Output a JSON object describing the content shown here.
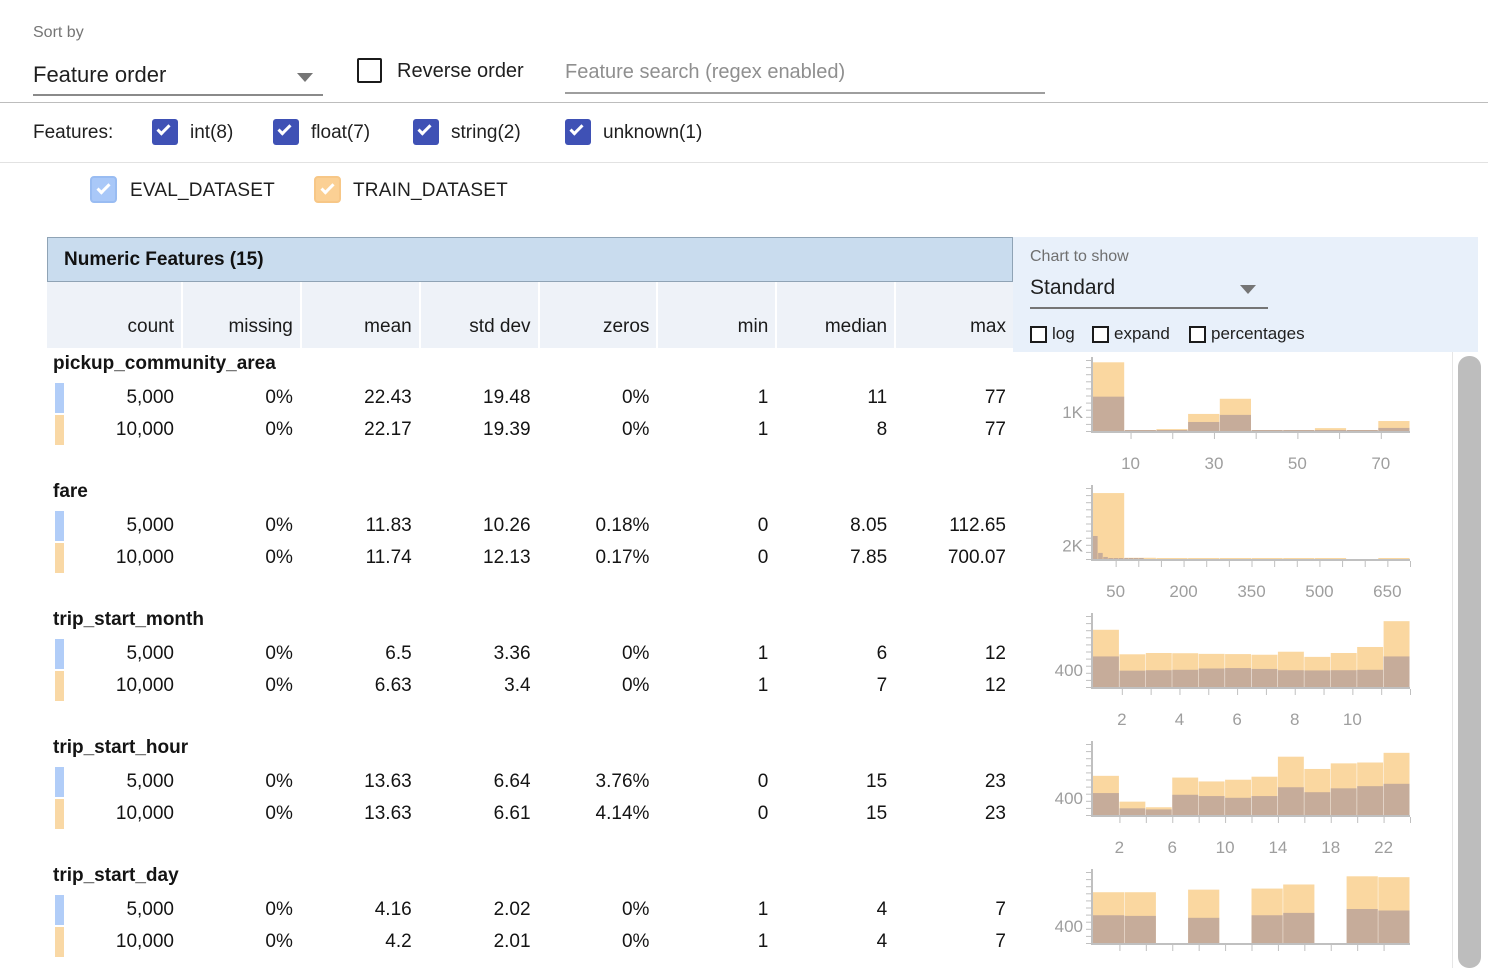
{
  "toolbar": {
    "sort_by_label": "Sort by",
    "sort_value": "Feature order",
    "reverse_label": "Reverse order",
    "search_placeholder": "Feature search (regex enabled)"
  },
  "filters": {
    "label": "Features:",
    "types": [
      {
        "label": "int(8)",
        "checked": true
      },
      {
        "label": "float(7)",
        "checked": true
      },
      {
        "label": "string(2)",
        "checked": true
      },
      {
        "label": "unknown(1)",
        "checked": true
      }
    ]
  },
  "datasets": [
    {
      "label": "EVAL_DATASET",
      "color": "#a9c8f8",
      "checked": true
    },
    {
      "label": "TRAIN_DATASET",
      "color": "#fbd094",
      "checked": true
    }
  ],
  "table": {
    "title": "Numeric Features (15)",
    "columns": [
      "count",
      "missing",
      "mean",
      "std dev",
      "zeros",
      "min",
      "median",
      "max"
    ]
  },
  "chart_controls": {
    "label": "Chart to show",
    "selected": "Standard",
    "checkboxes": [
      {
        "label": "log",
        "checked": false
      },
      {
        "label": "expand",
        "checked": false
      },
      {
        "label": "percentages",
        "checked": false
      }
    ]
  },
  "colors": {
    "train": "#fad7a0",
    "eval_swatch": "#b1cdf8",
    "eval_overlay": "rgba(126,111,145,0.42)",
    "filter_checkbox": "#3f51b5",
    "header_bar_bg": "#c9dcee",
    "panel_bg": "#e8f0fa",
    "axis": "#c0c0c0",
    "axis_text": "#9e9e9e"
  },
  "features": [
    {
      "name": "pickup_community_area",
      "rows": [
        {
          "dataset": "EVAL_DATASET",
          "count": "5,000",
          "missing": "0%",
          "mean": "22.43",
          "std": "19.48",
          "zeros": "0%",
          "min": "1",
          "median": "11",
          "max": "77"
        },
        {
          "dataset": "TRAIN_DATASET",
          "count": "10,000",
          "missing": "0%",
          "mean": "22.17",
          "std": "19.39",
          "zeros": "0%",
          "min": "1",
          "median": "8",
          "max": "77"
        }
      ]
    },
    {
      "name": "fare",
      "rows": [
        {
          "dataset": "EVAL_DATASET",
          "count": "5,000",
          "missing": "0%",
          "mean": "11.83",
          "std": "10.26",
          "zeros": "0.18%",
          "min": "0",
          "median": "8.05",
          "max": "112.65"
        },
        {
          "dataset": "TRAIN_DATASET",
          "count": "10,000",
          "missing": "0%",
          "mean": "11.74",
          "std": "12.13",
          "zeros": "0.17%",
          "min": "0",
          "median": "7.85",
          "max": "700.07"
        }
      ]
    },
    {
      "name": "trip_start_month",
      "rows": [
        {
          "dataset": "EVAL_DATASET",
          "count": "5,000",
          "missing": "0%",
          "mean": "6.5",
          "std": "3.36",
          "zeros": "0%",
          "min": "1",
          "median": "6",
          "max": "12"
        },
        {
          "dataset": "TRAIN_DATASET",
          "count": "10,000",
          "missing": "0%",
          "mean": "6.63",
          "std": "3.4",
          "zeros": "0%",
          "min": "1",
          "median": "7",
          "max": "12"
        }
      ]
    },
    {
      "name": "trip_start_hour",
      "rows": [
        {
          "dataset": "EVAL_DATASET",
          "count": "5,000",
          "missing": "0%",
          "mean": "13.63",
          "std": "6.64",
          "zeros": "3.76%",
          "min": "0",
          "median": "15",
          "max": "23"
        },
        {
          "dataset": "TRAIN_DATASET",
          "count": "10,000",
          "missing": "0%",
          "mean": "13.63",
          "std": "6.61",
          "zeros": "4.14%",
          "min": "0",
          "median": "15",
          "max": "23"
        }
      ]
    },
    {
      "name": "trip_start_day",
      "rows": [
        {
          "dataset": "EVAL_DATASET",
          "count": "5,000",
          "missing": "0%",
          "mean": "4.16",
          "std": "2.02",
          "zeros": "0%",
          "min": "1",
          "median": "4",
          "max": "7"
        },
        {
          "dataset": "TRAIN_DATASET",
          "count": "10,000",
          "missing": "0%",
          "mean": "4.2",
          "std": "2.01",
          "zeros": "0%",
          "min": "1",
          "median": "4",
          "max": "7"
        }
      ]
    }
  ],
  "chart_data": [
    {
      "type": "histogram",
      "feature": "pickup_community_area",
      "x_min": 1,
      "x_max": 77,
      "y_max": 3700,
      "y_gridline": {
        "value": 1000,
        "label": "1K"
      },
      "x_ticks": [
        10,
        20,
        30,
        40,
        50,
        60,
        70
      ],
      "x_tick_labels": [
        {
          "v": 10,
          "t": "10"
        },
        {
          "v": 30,
          "t": "30"
        },
        {
          "v": 50,
          "t": "50"
        },
        {
          "v": 70,
          "t": "70"
        }
      ],
      "series": [
        {
          "name": "TRAIN_DATASET",
          "bin_start": 1,
          "bin_width": 7.6,
          "counts": [
            3580,
            30,
            100,
            890,
            1680,
            10,
            5,
            150,
            5,
            520
          ]
        },
        {
          "name": "EVAL_DATASET",
          "bin_start": 1,
          "bin_width": 7.6,
          "counts": [
            1790,
            10,
            40,
            470,
            840,
            5,
            2,
            50,
            2,
            160
          ]
        }
      ]
    },
    {
      "type": "histogram",
      "feature": "fare",
      "x_min": 0,
      "x_max": 700,
      "y_max": 10500,
      "y_gridline": {
        "value": 2000,
        "label": "2K"
      },
      "x_ticks": [
        50,
        100,
        150,
        200,
        250,
        300,
        350,
        400,
        450,
        500,
        550,
        600,
        650,
        700
      ],
      "x_tick_labels": [
        {
          "v": 50,
          "t": "50"
        },
        {
          "v": 200,
          "t": "200"
        },
        {
          "v": 350,
          "t": "350"
        },
        {
          "v": 500,
          "t": "500"
        },
        {
          "v": 650,
          "t": "650"
        }
      ],
      "series": [
        {
          "name": "TRAIN_DATASET",
          "bin_start": 0,
          "bin_width": 70,
          "counts": [
            9750,
            180,
            40,
            15,
            6,
            3,
            2,
            1,
            0,
            1
          ]
        },
        {
          "name": "EVAL_DATASET",
          "bin_start": 0,
          "bin_width": 11.3,
          "counts": [
            3400,
            900,
            300,
            120,
            60,
            30,
            15,
            8,
            3,
            2
          ]
        }
      ]
    },
    {
      "type": "histogram",
      "feature": "trip_start_month",
      "x_min": 1,
      "x_max": 12,
      "y_max": 1650,
      "y_gridline": {
        "value": 400,
        "label": "400"
      },
      "x_ticks": [
        2,
        3,
        4,
        5,
        6,
        7,
        8,
        9,
        10,
        11,
        12
      ],
      "x_tick_labels": [
        {
          "v": 2,
          "t": "2"
        },
        {
          "v": 4,
          "t": "4"
        },
        {
          "v": 6,
          "t": "6"
        },
        {
          "v": 8,
          "t": "8"
        },
        {
          "v": 10,
          "t": "10"
        }
      ],
      "series": [
        {
          "name": "TRAIN_DATASET",
          "bin_start": 1,
          "bin_width": 0.9167,
          "counts": [
            1330,
            760,
            790,
            785,
            770,
            765,
            750,
            820,
            700,
            790,
            930,
            1530
          ]
        },
        {
          "name": "EVAL_DATASET",
          "bin_start": 1,
          "bin_width": 0.9167,
          "counts": [
            710,
            380,
            390,
            400,
            430,
            440,
            420,
            390,
            385,
            390,
            400,
            710
          ]
        }
      ]
    },
    {
      "type": "histogram",
      "feature": "trip_start_hour",
      "x_min": 0,
      "x_max": 24,
      "y_max": 1650,
      "y_gridline": {
        "value": 400,
        "label": "400"
      },
      "x_ticks": [
        2,
        4,
        6,
        8,
        10,
        12,
        14,
        16,
        18,
        20,
        22,
        24
      ],
      "x_tick_labels": [
        {
          "v": 2,
          "t": "2"
        },
        {
          "v": 6,
          "t": "6"
        },
        {
          "v": 10,
          "t": "10"
        },
        {
          "v": 14,
          "t": "14"
        },
        {
          "v": 18,
          "t": "18"
        },
        {
          "v": 22,
          "t": "22"
        }
      ],
      "series": [
        {
          "name": "TRAIN_DATASET",
          "bin_start": 0,
          "bin_width": 2,
          "counts": [
            910,
            310,
            180,
            870,
            780,
            820,
            890,
            1355,
            1070,
            1200,
            1220,
            1445
          ]
        },
        {
          "name": "EVAL_DATASET",
          "bin_start": 0,
          "bin_width": 2,
          "counts": [
            510,
            155,
            130,
            470,
            440,
            400,
            440,
            645,
            530,
            620,
            670,
            725
          ]
        }
      ]
    },
    {
      "type": "histogram",
      "feature": "trip_start_day",
      "x_min": 1,
      "x_max": 7,
      "y_max": 1650,
      "y_gridline": {
        "value": 400,
        "label": "400"
      },
      "x_ticks": [
        1.5,
        2,
        2.5,
        3,
        3.5,
        4,
        4.5,
        5,
        5.5,
        6,
        6.5
      ],
      "x_tick_labels": [],
      "series": [
        {
          "name": "TRAIN_DATASET",
          "bin_start": 1,
          "bin_width": 0.6,
          "counts": [
            1180,
            1180,
            0,
            1240,
            0,
            1265,
            1360,
            0,
            1550,
            1530
          ]
        },
        {
          "name": "EVAL_DATASET",
          "bin_start": 1,
          "bin_width": 0.6,
          "counts": [
            645,
            630,
            0,
            585,
            0,
            645,
            700,
            0,
            790,
            755
          ]
        }
      ]
    }
  ]
}
